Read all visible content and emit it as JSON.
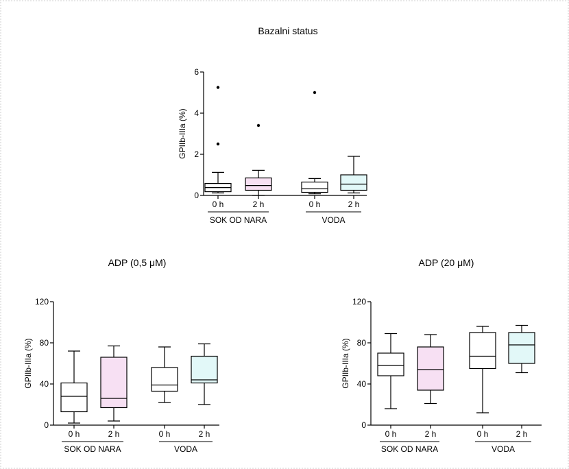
{
  "colors": {
    "axis": "#000000",
    "box_fill_plain": "#ffffff",
    "box_fill_pink": "#f7e0f3",
    "box_fill_cyan": "#e2f8f8",
    "border": "#e6e6e6"
  },
  "chart_data": [
    {
      "type": "box",
      "title": "Bazalni status",
      "ylabel": "GPIIb-IIIa (%)",
      "ylim": [
        0,
        6
      ],
      "yticks": [
        "0",
        "2",
        "4",
        "6"
      ],
      "groups": [
        {
          "label": "SOK OD NARA",
          "categories": [
            "0 h",
            "2 h"
          ]
        },
        {
          "label": "VODA",
          "categories": [
            "0 h",
            "2 h"
          ]
        }
      ],
      "boxes": [
        {
          "category": "0 h",
          "group": "SOK OD NARA",
          "fill": "plain",
          "whisker_low": 0.12,
          "q1": 0.18,
          "median": 0.38,
          "q3": 0.58,
          "whisker_high": 1.12,
          "outliers": [
            2.5,
            5.25
          ]
        },
        {
          "category": "2 h",
          "group": "SOK OD NARA",
          "fill": "pink",
          "whisker_low": 0.0,
          "q1": 0.25,
          "median": 0.48,
          "q3": 0.85,
          "whisker_high": 1.22,
          "outliers": [
            3.4
          ]
        },
        {
          "category": "0 h",
          "group": "VODA",
          "fill": "plain",
          "whisker_low": 0.08,
          "q1": 0.15,
          "median": 0.32,
          "q3": 0.65,
          "whisker_high": 0.82,
          "outliers": [
            5.0
          ]
        },
        {
          "category": "2 h",
          "group": "VODA",
          "fill": "cyan",
          "whisker_low": 0.12,
          "q1": 0.25,
          "median": 0.55,
          "q3": 1.0,
          "whisker_high": 1.9,
          "outliers": []
        }
      ]
    },
    {
      "type": "box",
      "title": "ADP (0,5 μM)",
      "ylabel": "GPIIb-IIIa (%)",
      "ylim": [
        0,
        120
      ],
      "yticks": [
        "0",
        "40",
        "80",
        "120"
      ],
      "groups": [
        {
          "label": "SOK OD NARA",
          "categories": [
            "0 h",
            "2 h"
          ]
        },
        {
          "label": "VODA",
          "categories": [
            "0 h",
            "2 h"
          ]
        }
      ],
      "boxes": [
        {
          "category": "0 h",
          "group": "SOK OD NARA",
          "fill": "plain",
          "whisker_low": 2,
          "q1": 13,
          "median": 28,
          "q3": 41,
          "whisker_high": 72,
          "outliers": []
        },
        {
          "category": "2 h",
          "group": "SOK OD NARA",
          "fill": "pink",
          "whisker_low": 4,
          "q1": 17,
          "median": 26,
          "q3": 66,
          "whisker_high": 77,
          "outliers": []
        },
        {
          "category": "0 h",
          "group": "VODA",
          "fill": "plain",
          "whisker_low": 22,
          "q1": 33,
          "median": 39,
          "q3": 56,
          "whisker_high": 76,
          "outliers": []
        },
        {
          "category": "2 h",
          "group": "VODA",
          "fill": "cyan",
          "whisker_low": 20,
          "q1": 41,
          "median": 44,
          "q3": 67,
          "whisker_high": 79,
          "outliers": []
        }
      ]
    },
    {
      "type": "box",
      "title": "ADP (20 μM)",
      "ylabel": "GPIIb-IIIa (%)",
      "ylim": [
        0,
        120
      ],
      "yticks": [
        "0",
        "40",
        "80",
        "120"
      ],
      "groups": [
        {
          "label": "SOK OD NARA",
          "categories": [
            "0 h",
            "2 h"
          ]
        },
        {
          "label": "VODA",
          "categories": [
            "0 h",
            "2 h"
          ]
        }
      ],
      "boxes": [
        {
          "category": "0 h",
          "group": "SOK OD NARA",
          "fill": "plain",
          "whisker_low": 16,
          "q1": 48,
          "median": 58,
          "q3": 70,
          "whisker_high": 89,
          "outliers": []
        },
        {
          "category": "2 h",
          "group": "SOK OD NARA",
          "fill": "pink",
          "whisker_low": 21,
          "q1": 34,
          "median": 54,
          "q3": 76,
          "whisker_high": 88,
          "outliers": []
        },
        {
          "category": "0 h",
          "group": "VODA",
          "fill": "plain",
          "whisker_low": 12,
          "q1": 55,
          "median": 67,
          "q3": 90,
          "whisker_high": 96,
          "outliers": []
        },
        {
          "category": "2 h",
          "group": "VODA",
          "fill": "cyan",
          "whisker_low": 51,
          "q1": 60,
          "median": 78,
          "q3": 90,
          "whisker_high": 97,
          "outliers": []
        }
      ]
    }
  ]
}
